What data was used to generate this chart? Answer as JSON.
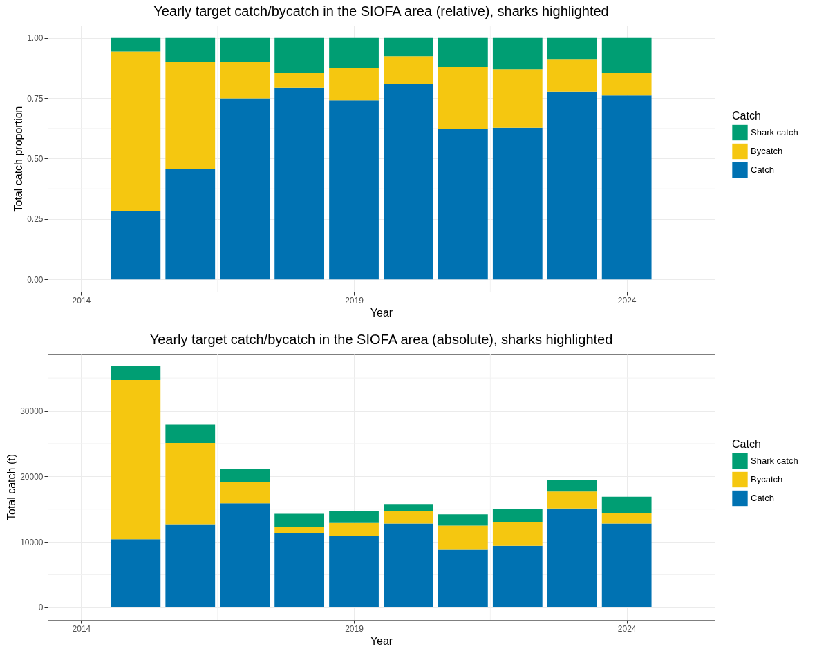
{
  "chart_data": [
    {
      "type": "bar",
      "stacked": true,
      "title": "Yearly target catch/bycatch in the SIOFA area (relative), sharks highlighted",
      "xlabel": "Year",
      "ylabel": "Total catch proportion",
      "legend_title": "Catch",
      "legend": "right",
      "grid": true,
      "x": [
        2015,
        2016,
        2017,
        2018,
        2019,
        2020,
        2021,
        2022,
        2023,
        2024
      ],
      "xlim": [
        2013.45,
        2025.55
      ],
      "xticks": [
        2014,
        2019,
        2024
      ],
      "ylim": [
        -0.051,
        1.051
      ],
      "yticks": [
        {
          "value": 0,
          "label": "0.00"
        },
        0.25,
        {
          "value": 0.5,
          "label": "0.50"
        },
        0.75,
        {
          "value": 1,
          "label": "1.00"
        }
      ],
      "series": [
        {
          "name": "Catch",
          "color": "#0072b2",
          "values": [
            0.282,
            0.456,
            0.749,
            0.794,
            0.741,
            0.808,
            0.623,
            0.628,
            0.777,
            0.761
          ]
        },
        {
          "name": "Bycatch",
          "color": "#f5c710",
          "values": [
            0.662,
            0.445,
            0.152,
            0.062,
            0.135,
            0.116,
            0.256,
            0.242,
            0.133,
            0.093
          ]
        },
        {
          "name": "Shark catch",
          "color": "#009e73",
          "values": [
            0.056,
            0.099,
            0.099,
            0.144,
            0.124,
            0.076,
            0.121,
            0.13,
            0.09,
            0.146
          ]
        }
      ]
    },
    {
      "type": "bar",
      "stacked": true,
      "title": "Yearly target catch/bycatch in the SIOFA area (absolute), sharks highlighted",
      "xlabel": "Year",
      "ylabel": "Total catch (t)",
      "legend_title": "Catch",
      "legend": "right",
      "grid": true,
      "x": [
        2015,
        2016,
        2017,
        2018,
        2019,
        2020,
        2021,
        2022,
        2023,
        2024
      ],
      "xlim": [
        2013.45,
        2025.55
      ],
      "xticks": [
        2014,
        2019,
        2024
      ],
      "ylim": [
        -1900,
        38700
      ],
      "yticks": [
        0,
        10000,
        20000,
        30000
      ],
      "series": [
        {
          "name": "Catch",
          "color": "#0072b2",
          "values": [
            10400,
            12700,
            15900,
            11400,
            10900,
            12800,
            8800,
            9400,
            15100,
            12800
          ]
        },
        {
          "name": "Bycatch",
          "color": "#f5c710",
          "values": [
            24300,
            12400,
            3200,
            900,
            2000,
            1900,
            3700,
            3600,
            2600,
            1600
          ]
        },
        {
          "name": "Shark catch",
          "color": "#009e73",
          "values": [
            2100,
            2800,
            2100,
            2000,
            1800,
            1100,
            1700,
            2000,
            1700,
            2500
          ]
        }
      ]
    }
  ]
}
